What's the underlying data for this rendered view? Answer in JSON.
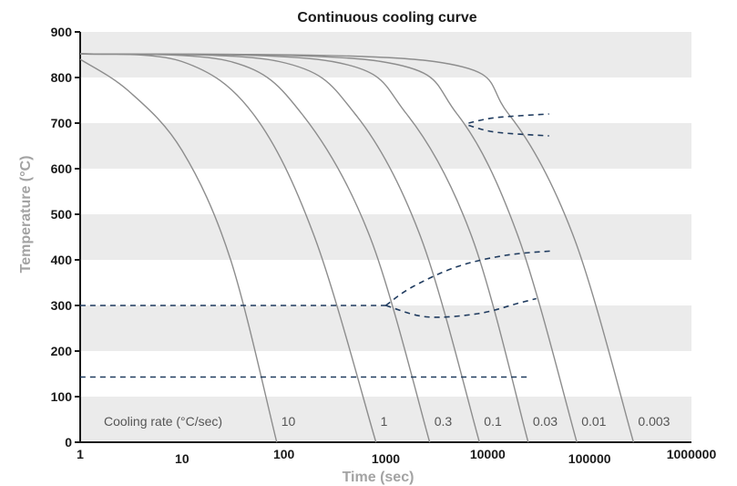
{
  "chart_data": {
    "type": "line",
    "title": "Continuous cooling curve",
    "xlabel": "Time (sec)",
    "ylabel": "Temperature (°C)",
    "x_scale": "log",
    "xlim": [
      1,
      1000000
    ],
    "ylim": [
      0,
      900
    ],
    "x_ticks": [
      "1",
      "10",
      "100",
      "1000",
      "10000",
      "100000",
      "1000000"
    ],
    "y_ticks": [
      "0",
      "100",
      "200",
      "300",
      "400",
      "500",
      "600",
      "700",
      "800",
      "900"
    ],
    "grid": "alternating horizontal bands",
    "cooling_rate_caption": "Cooling rate (°C/sec)",
    "series": [
      {
        "rate_label": "10",
        "points": [
          [
            1,
            840
          ],
          [
            3,
            770
          ],
          [
            10,
            640
          ],
          [
            30,
            400
          ],
          [
            85,
            0
          ]
        ]
      },
      {
        "rate_label": "1",
        "points": [
          [
            1,
            852
          ],
          [
            10,
            835
          ],
          [
            50,
            720
          ],
          [
            200,
            450
          ],
          [
            800,
            0
          ]
        ]
      },
      {
        "rate_label": "0.3",
        "points": [
          [
            1,
            852
          ],
          [
            30,
            835
          ],
          [
            150,
            720
          ],
          [
            700,
            450
          ],
          [
            2700,
            0
          ]
        ]
      },
      {
        "rate_label": "0.1",
        "points": [
          [
            1,
            852
          ],
          [
            90,
            835
          ],
          [
            500,
            720
          ],
          [
            2200,
            450
          ],
          [
            8300,
            0
          ]
        ]
      },
      {
        "rate_label": "0.03",
        "points": [
          [
            1,
            852
          ],
          [
            300,
            835
          ],
          [
            1600,
            720
          ],
          [
            7000,
            450
          ],
          [
            25000,
            0
          ]
        ]
      },
      {
        "rate_label": "0.01",
        "points": [
          [
            1,
            852
          ],
          [
            900,
            835
          ],
          [
            5000,
            720
          ],
          [
            20000,
            450
          ],
          [
            75000,
            0
          ]
        ]
      },
      {
        "rate_label": "0.003",
        "points": [
          [
            1,
            852
          ],
          [
            3000,
            835
          ],
          [
            16000,
            720
          ],
          [
            70000,
            450
          ],
          [
            270000,
            0
          ]
        ]
      }
    ],
    "dashed_lines": [
      {
        "points": [
          [
            6500,
            700
          ],
          [
            12000,
            712
          ],
          [
            40000,
            720
          ]
        ]
      },
      {
        "points": [
          [
            6500,
            695
          ],
          [
            12000,
            680
          ],
          [
            40000,
            672
          ]
        ]
      },
      {
        "points": [
          [
            1,
            300
          ],
          [
            1000,
            300
          ]
        ]
      },
      {
        "points": [
          [
            1000,
            300
          ],
          [
            1800,
            340
          ],
          [
            5000,
            385
          ],
          [
            15000,
            410
          ],
          [
            45000,
            420
          ]
        ]
      },
      {
        "points": [
          [
            1000,
            300
          ],
          [
            2500,
            275
          ],
          [
            8000,
            282
          ],
          [
            20000,
            305
          ],
          [
            30000,
            315
          ]
        ]
      },
      {
        "points": [
          [
            1,
            143
          ],
          [
            25000,
            143
          ]
        ]
      }
    ]
  }
}
